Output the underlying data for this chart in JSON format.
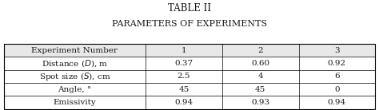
{
  "title_line1": "TABLE II",
  "title_line2": "PARAMETERS OF EXPERIMENTS",
  "col_headers": [
    "Experiment Number",
    "1",
    "2",
    "3"
  ],
  "col_vals": [
    [
      "Distance ($D$), m",
      "0.37",
      "0.60",
      "0.92"
    ],
    [
      "Spot size ($S$), cm",
      "2.5",
      "4",
      "6"
    ],
    [
      "Angle, °",
      "45",
      "45",
      "0"
    ],
    [
      "Emissivity",
      "0.94",
      "0.93",
      "0.94"
    ]
  ],
  "bg_color": "#ffffff",
  "header_bg": "#e8e8e8",
  "text_color": "#1a1a1a",
  "border_color": "#000000",
  "font_size": 7.5,
  "title_font_size": 8.5,
  "subtitle_font_size": 8.0,
  "fig_width": 4.74,
  "fig_height": 1.38
}
